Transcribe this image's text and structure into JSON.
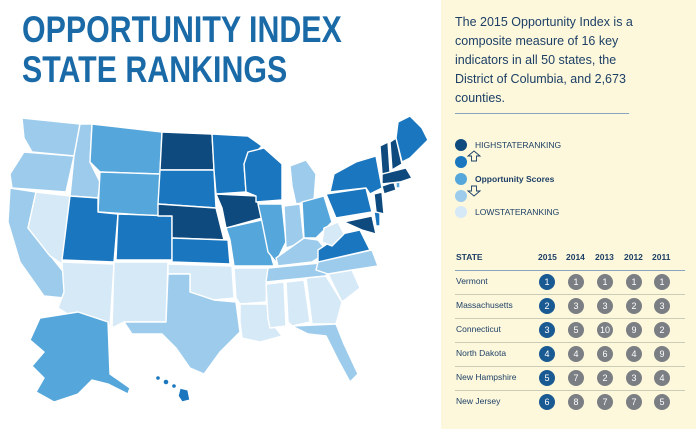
{
  "title": {
    "line1": "OPPORTUNITY INDEX",
    "line2": "STATE RANKINGS"
  },
  "description": "The 2015 Opportunity Index is a composite measure of 16 key indicators in all 50 states, the District of Columbia, and 2,673 counties.",
  "legend": {
    "high": "HIGHSTATERANKING",
    "middle": "Opportunity Scores",
    "low": "LOWSTATERANKING",
    "shade_colors": [
      "#0e4a7e",
      "#1a76be",
      "#55a6da",
      "#9ccbec",
      "#d6e9f7"
    ]
  },
  "colors": {
    "title": "#1a6aa8",
    "panel_bg": "#fdf8dc",
    "text": "#1d3f66",
    "current_rank": "#1a5a92",
    "past_rank": "#7b7f84"
  },
  "table": {
    "headers": [
      "STATE",
      "2015",
      "2014",
      "2013",
      "2012",
      "2011"
    ],
    "rows": [
      {
        "state": "Vermont",
        "ranks": [
          "1",
          "1",
          "1",
          "1",
          "1"
        ]
      },
      {
        "state": "Massachusetts",
        "ranks": [
          "2",
          "3",
          "3",
          "2",
          "3"
        ]
      },
      {
        "state": "Connecticut",
        "ranks": [
          "3",
          "5",
          "10",
          "9",
          "2"
        ]
      },
      {
        "state": "North Dakota",
        "ranks": [
          "4",
          "4",
          "6",
          "4",
          "9"
        ]
      },
      {
        "state": "New Hampshire",
        "ranks": [
          "5",
          "7",
          "2",
          "3",
          "4"
        ]
      },
      {
        "state": "New Jersey",
        "ranks": [
          "6",
          "8",
          "7",
          "7",
          "5"
        ]
      }
    ]
  }
}
